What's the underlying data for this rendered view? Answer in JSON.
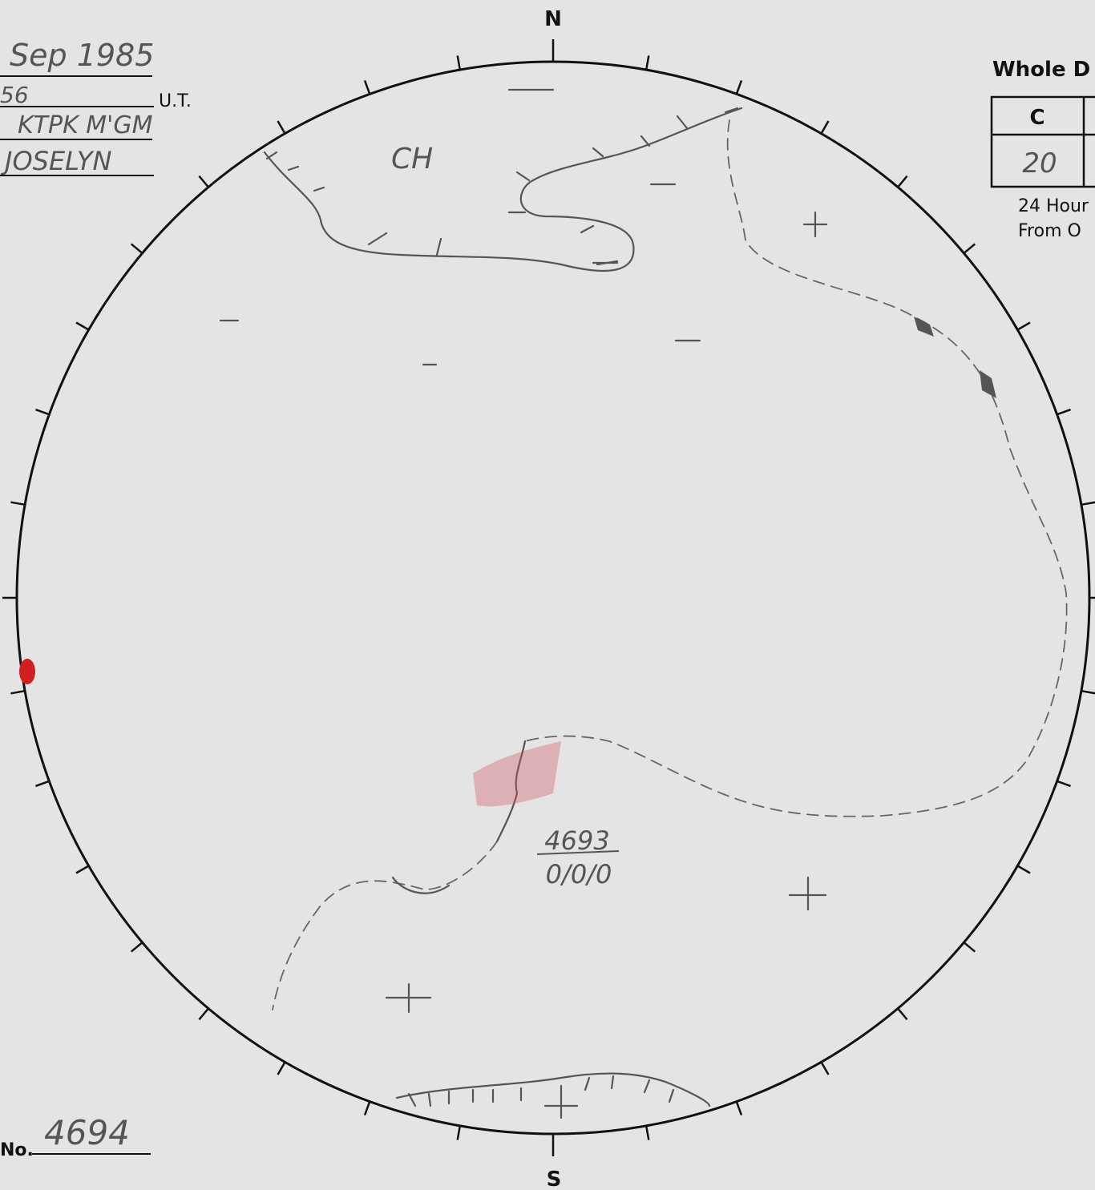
{
  "header": {
    "date": "Sep 1985",
    "time": "56",
    "time_unit": "U.T.",
    "observatory": "KTPK M'GM",
    "observer": "JOSELYN"
  },
  "compass": {
    "north": "N",
    "south": "S"
  },
  "table": {
    "title": "Whole D",
    "columns": [
      "C"
    ],
    "rows": [
      [
        "20"
      ]
    ],
    "note_lines": [
      "24 Hour",
      "From O"
    ]
  },
  "labels": {
    "coronal_hole": "CH",
    "region_number": "4693",
    "region_counts": "0/0/0"
  },
  "footer": {
    "label": "No.",
    "number": "4694"
  }
}
